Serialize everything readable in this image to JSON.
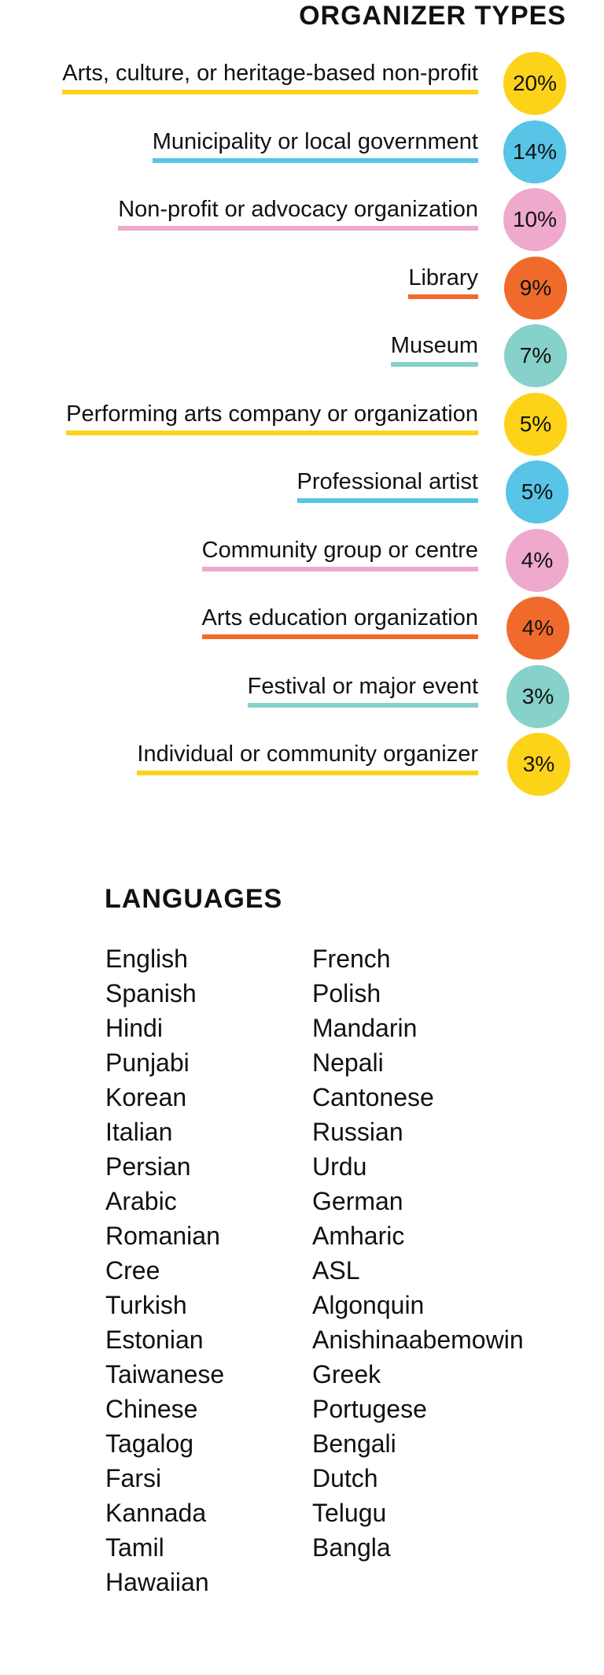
{
  "organizer": {
    "title": "ORGANIZER TYPES"
  },
  "chart_data": {
    "type": "bar",
    "title": "ORGANIZER TYPES",
    "categories": [
      "Arts, culture, or heritage-based non-profit",
      "Municipality or local government",
      "Non-profit or advocacy organization",
      "Library",
      "Museum",
      "Performing arts company or organization",
      "Professional artist",
      "Community group or centre",
      "Arts education organization",
      "Festival or major event",
      "Individual or community organizer"
    ],
    "values": [
      20,
      14,
      10,
      9,
      7,
      5,
      5,
      4,
      4,
      3,
      3
    ],
    "value_labels": [
      "20%",
      "14%",
      "10%",
      "9%",
      "7%",
      "5%",
      "5%",
      "4%",
      "4%",
      "3%",
      "3%"
    ],
    "colors": [
      "#fdd31a",
      "#58c4e6",
      "#eea9cc",
      "#f06b2b",
      "#86d1c9",
      "#fdd31a",
      "#58c4e6",
      "#eea9cc",
      "#f06b2b",
      "#86d1c9",
      "#fdd31a"
    ]
  },
  "languages": {
    "title": "LANGUAGES",
    "column1": [
      "English",
      "Spanish",
      "Hindi",
      "Punjabi",
      "Korean",
      "Italian",
      "Persian",
      "Arabic",
      "Romanian",
      "Cree",
      "Turkish",
      "Estonian",
      "Taiwanese",
      "Chinese",
      "Tagalog",
      "Farsi",
      "Kannada",
      "Tamil",
      "Hawaiian"
    ],
    "column2": [
      "French",
      "Polish",
      "Mandarin",
      "Nepali",
      "Cantonese",
      "Russian",
      "Urdu",
      "German",
      "Amharic",
      "ASL",
      "Algonquin",
      "Anishinaabemowin",
      "Greek",
      "Portugese",
      "Bengali",
      "Dutch",
      "Telugu",
      "Bangla"
    ]
  }
}
